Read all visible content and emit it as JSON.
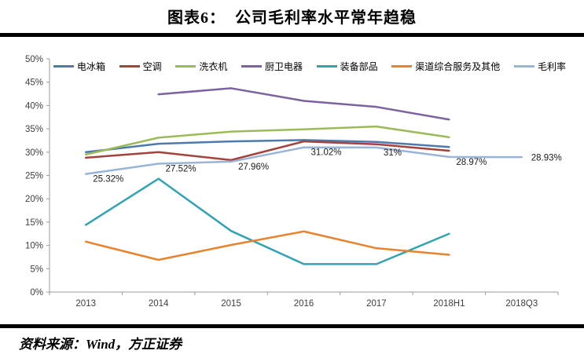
{
  "header": {
    "title": "图表6：  公司毛利率水平常年趋稳"
  },
  "footer": {
    "source": "资料来源：Wind，方正证券"
  },
  "chart_data": {
    "type": "line",
    "title": "公司毛利率水平常年趋稳",
    "categories": [
      "2013",
      "2014",
      "2015",
      "2016",
      "2017",
      "2018H1",
      "2018Q3"
    ],
    "xlabel": "",
    "ylabel": "",
    "ylim": [
      0,
      50
    ],
    "ytick_step": 5,
    "yticks": [
      "0%",
      "5%",
      "10%",
      "15%",
      "20%",
      "25%",
      "30%",
      "35%",
      "40%",
      "45%",
      "50%"
    ],
    "grid": false,
    "legend_position": "top",
    "axis_color": "#9a9a9a",
    "tick_label_color": "#3f3f3f",
    "data_label_color": "#1a1a1a",
    "series": [
      {
        "name": "电冰箱",
        "color": "#4C79AE",
        "values": [
          30.0,
          31.8,
          32.3,
          32.6,
          32.2,
          31.1,
          null
        ]
      },
      {
        "name": "空调",
        "color": "#A5423C",
        "values": [
          28.8,
          30.0,
          28.3,
          32.3,
          31.7,
          30.3,
          null
        ]
      },
      {
        "name": "洗衣机",
        "color": "#9BBB59",
        "values": [
          29.5,
          33.1,
          34.4,
          34.9,
          35.5,
          33.2,
          null
        ]
      },
      {
        "name": "厨卫电器",
        "color": "#7D62A0",
        "values": [
          null,
          42.4,
          43.7,
          41.0,
          39.7,
          37.0,
          null
        ]
      },
      {
        "name": "装备部品",
        "color": "#31A3B4",
        "values": [
          14.4,
          24.3,
          13.1,
          6.0,
          6.0,
          12.5,
          null
        ]
      },
      {
        "name": "渠道综合服务及其他",
        "color": "#E8822D",
        "values": [
          10.8,
          6.9,
          10.1,
          13.0,
          9.4,
          8.0,
          null
        ]
      },
      {
        "name": "毛利率",
        "color": "#98B4D8",
        "values": [
          25.32,
          27.52,
          27.96,
          31.02,
          31.0,
          28.97,
          28.93
        ],
        "point_labels": [
          "25.32%",
          "27.52%",
          "27.96%",
          "31.02%",
          "31%",
          "28.97%",
          "28.93%"
        ]
      }
    ]
  }
}
